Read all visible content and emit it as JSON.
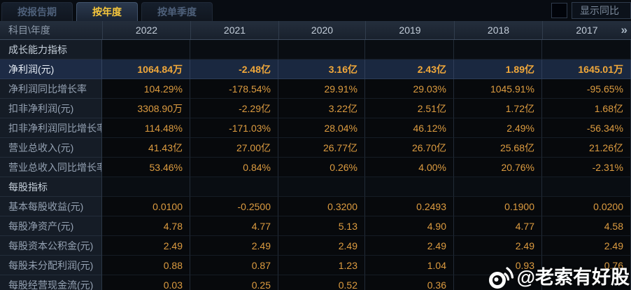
{
  "tabs": [
    {
      "label": "按报告期",
      "active": false
    },
    {
      "label": "按年度",
      "active": true
    },
    {
      "label": "按单季度",
      "active": false
    }
  ],
  "controls": {
    "yoy_label": "显示同比",
    "yoy_checked": false
  },
  "table": {
    "corner_label": "科目\\年度",
    "columns": [
      "2022",
      "2021",
      "2020",
      "2019",
      "2018",
      "2017"
    ],
    "more_icon": "»",
    "rows": [
      {
        "type": "section",
        "label": "成长能力指标",
        "values": [
          "",
          "",
          "",
          "",
          "",
          ""
        ]
      },
      {
        "type": "highlight",
        "label": "净利润(元)",
        "values": [
          "1064.84万",
          "-2.48亿",
          "3.16亿",
          "2.43亿",
          "1.89亿",
          "1645.01万"
        ]
      },
      {
        "type": "data",
        "label": "净利润同比增长率",
        "values": [
          "104.29%",
          "-178.54%",
          "29.91%",
          "29.03%",
          "1045.91%",
          "-95.65%"
        ]
      },
      {
        "type": "data",
        "label": "扣非净利润(元)",
        "values": [
          "3308.90万",
          "-2.29亿",
          "3.22亿",
          "2.51亿",
          "1.72亿",
          "1.68亿"
        ]
      },
      {
        "type": "data",
        "label": "扣非净利润同比增长率",
        "values": [
          "114.48%",
          "-171.03%",
          "28.04%",
          "46.12%",
          "2.49%",
          "-56.34%"
        ]
      },
      {
        "type": "data",
        "label": "营业总收入(元)",
        "values": [
          "41.43亿",
          "27.00亿",
          "26.77亿",
          "26.70亿",
          "25.68亿",
          "21.26亿"
        ]
      },
      {
        "type": "data",
        "label": "营业总收入同比增长率",
        "values": [
          "53.46%",
          "0.84%",
          "0.26%",
          "4.00%",
          "20.76%",
          "-2.31%"
        ]
      },
      {
        "type": "section",
        "label": "每股指标",
        "values": [
          "",
          "",
          "",
          "",
          "",
          ""
        ]
      },
      {
        "type": "data",
        "label": "基本每股收益(元)",
        "values": [
          "0.0100",
          "-0.2500",
          "0.3200",
          "0.2493",
          "0.1900",
          "0.0200"
        ]
      },
      {
        "type": "data",
        "label": "每股净资产(元)",
        "values": [
          "4.78",
          "4.77",
          "5.13",
          "4.90",
          "4.77",
          "4.58"
        ]
      },
      {
        "type": "data",
        "label": "每股资本公积金(元)",
        "values": [
          "2.49",
          "2.49",
          "2.49",
          "2.49",
          "2.49",
          "2.49"
        ]
      },
      {
        "type": "data",
        "label": "每股未分配利润(元)",
        "values": [
          "0.88",
          "0.87",
          "1.23",
          "1.04",
          "0.93",
          "0.76"
        ]
      },
      {
        "type": "data",
        "label": "每股经营现金流(元)",
        "values": [
          "0.03",
          "0.25",
          "0.52",
          "0.36",
          "",
          ""
        ]
      }
    ]
  },
  "watermark": {
    "text": "@老索有好股",
    "icon": "weibo-icon"
  },
  "colors": {
    "value_orange": "#dd9c40",
    "highlight_value_orange": "#f1a83a",
    "tab_active_gold": "#f7c73c",
    "highlight_row_bg": "#1a2840",
    "label_col_bg": "#151c26",
    "header_bg": "#1e2733"
  }
}
